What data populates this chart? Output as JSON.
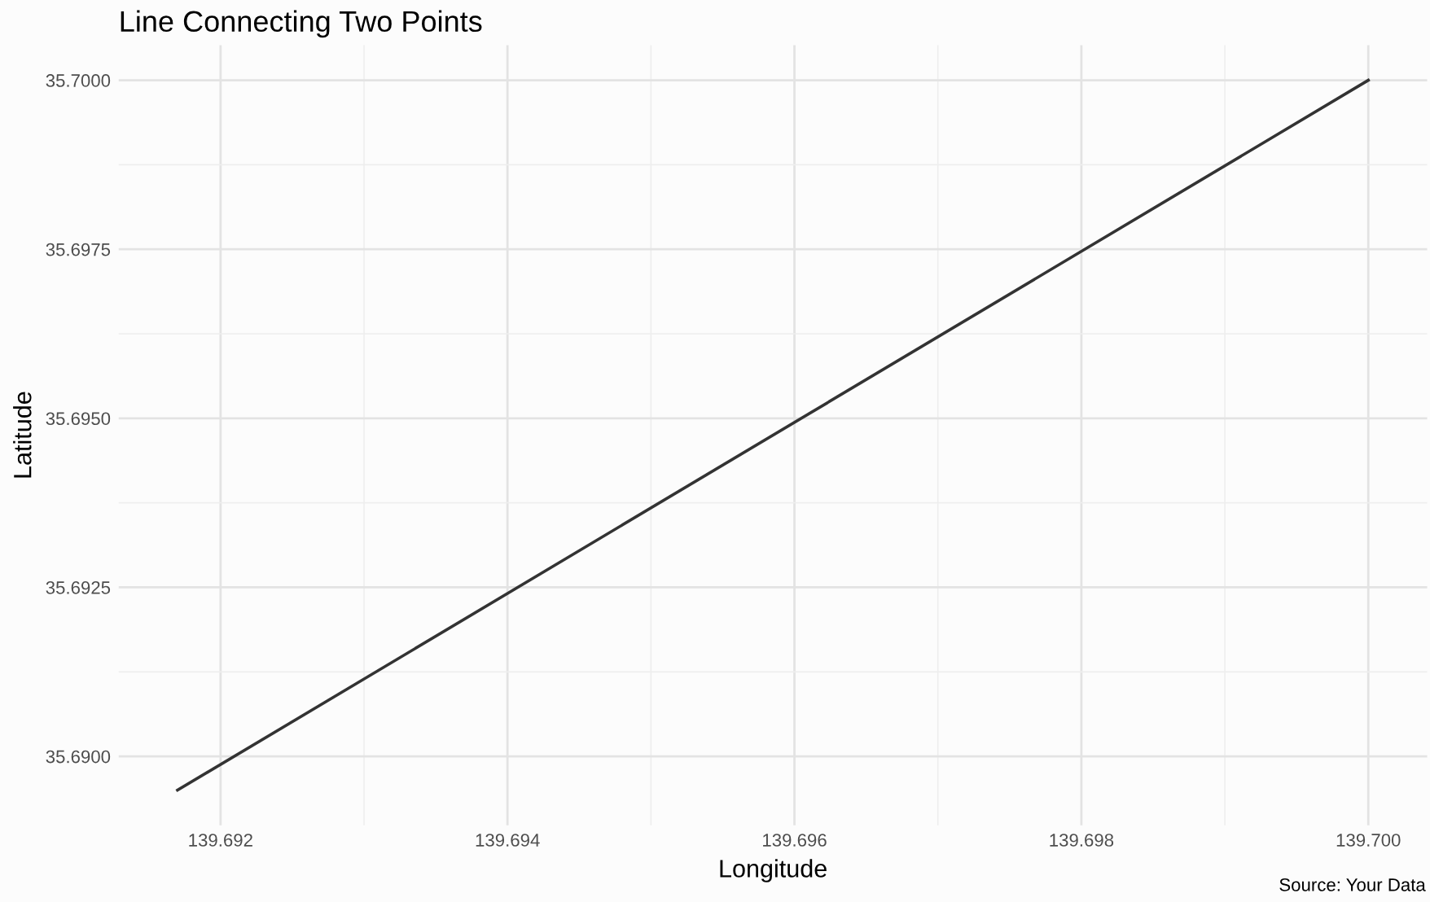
{
  "chart_data": {
    "type": "line",
    "title": "Line Connecting Two Points",
    "xlabel": "Longitude",
    "ylabel": "Latitude",
    "annotations": [
      "Source: Your Data"
    ],
    "x": [
      139.6917,
      139.7
    ],
    "series": [
      {
        "color": "#333333",
        "values": [
          35.6895,
          35.7
        ]
      }
    ],
    "xlim": [
      139.69129,
      139.70041
    ],
    "ylim": [
      35.68898,
      35.70052
    ],
    "xticks": [
      {
        "value": 139.692,
        "label": "139.692"
      },
      {
        "value": 139.694,
        "label": "139.694"
      },
      {
        "value": 139.696,
        "label": "139.696"
      },
      {
        "value": 139.698,
        "label": "139.698"
      },
      {
        "value": 139.7,
        "label": "139.700"
      }
    ],
    "yticks": [
      {
        "value": 35.69,
        "label": "35.6900"
      },
      {
        "value": 35.6925,
        "label": "35.6925"
      },
      {
        "value": 35.695,
        "label": "35.6950"
      },
      {
        "value": 35.6975,
        "label": "35.6975"
      },
      {
        "value": 35.7,
        "label": "35.7000"
      }
    ],
    "grid": true,
    "legend": false,
    "marker": "none",
    "line_style": "solid"
  }
}
